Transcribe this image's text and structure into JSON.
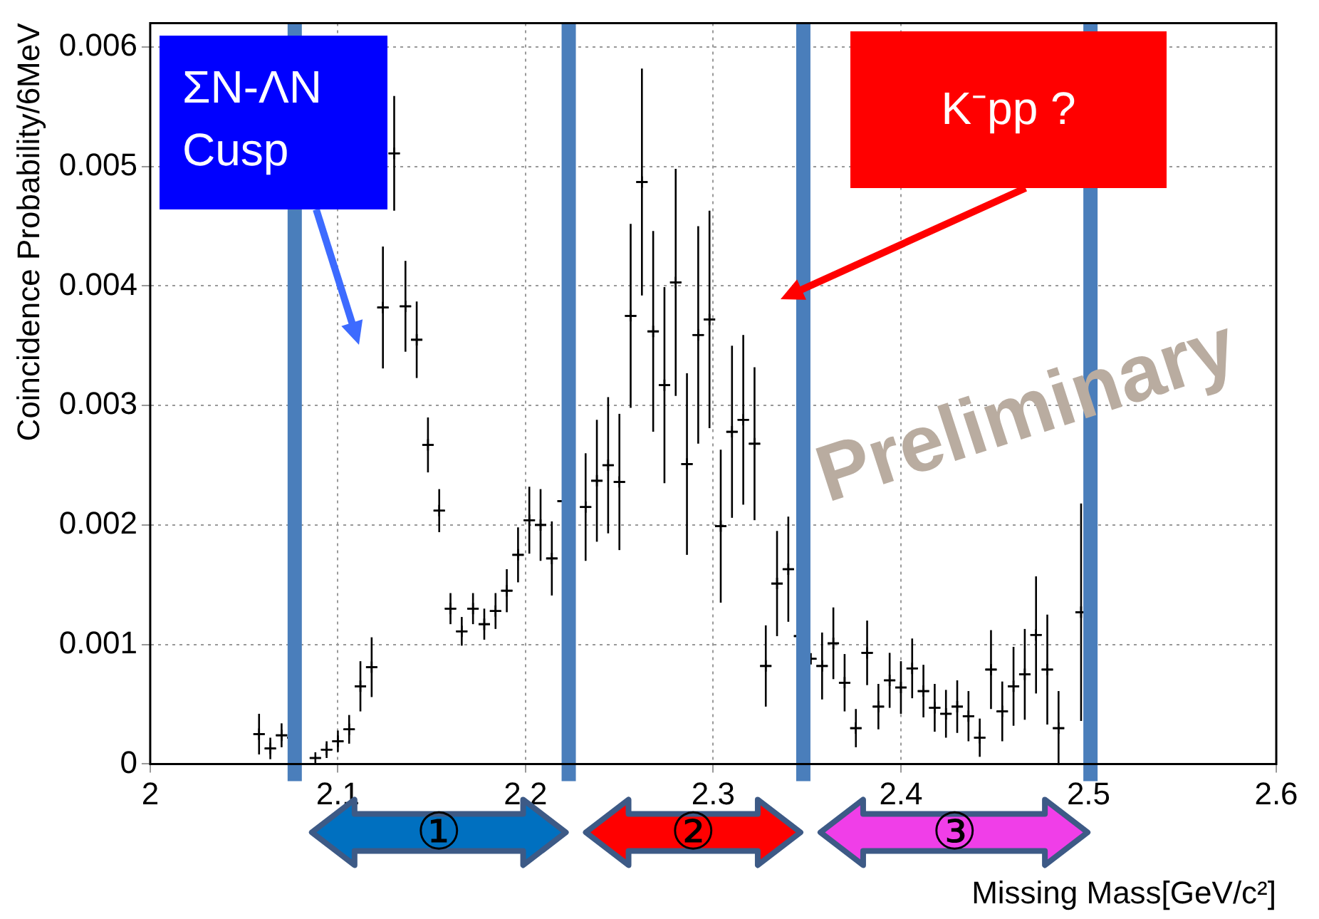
{
  "chart_data": {
    "type": "scatter",
    "ylabel": "Coincidence Probability/6MeV",
    "xlabel": "Missing Mass[GeV/c²]",
    "xlim": [
      2,
      2.6
    ],
    "xticks": [
      2,
      2.1,
      2.2,
      2.3,
      2.4,
      2.5,
      2.6
    ],
    "ylim": [
      0,
      0.0062
    ],
    "yticks": [
      0,
      0.001,
      0.002,
      0.003,
      0.004,
      0.005,
      0.006
    ],
    "grid": true,
    "marker": "cross",
    "x": [
      2.058,
      2.064,
      2.07,
      2.076,
      2.088,
      2.094,
      2.1,
      2.106,
      2.112,
      2.118,
      2.124,
      2.13,
      2.136,
      2.142,
      2.148,
      2.154,
      2.16,
      2.166,
      2.172,
      2.178,
      2.184,
      2.19,
      2.196,
      2.202,
      2.208,
      2.214,
      2.22,
      2.232,
      2.238,
      2.244,
      2.25,
      2.256,
      2.262,
      2.268,
      2.274,
      2.28,
      2.286,
      2.292,
      2.298,
      2.304,
      2.31,
      2.316,
      2.322,
      2.328,
      2.334,
      2.34,
      2.346,
      2.352,
      2.358,
      2.364,
      2.37,
      2.376,
      2.382,
      2.388,
      2.394,
      2.4,
      2.406,
      2.412,
      2.418,
      2.424,
      2.43,
      2.436,
      2.442,
      2.448,
      2.454,
      2.46,
      2.466,
      2.472,
      2.478,
      2.484,
      2.496
    ],
    "series": [
      {
        "color": "#000000",
        "values": [
          0.00025,
          0.00013,
          0.00024,
          0.00022,
          5e-05,
          0.00012,
          0.00019,
          0.00029,
          0.00065,
          0.00081,
          0.00382,
          0.00511,
          0.00383,
          0.00355,
          0.00267,
          0.00212,
          0.0013,
          0.00111,
          0.0013,
          0.00117,
          0.00128,
          0.00145,
          0.00175,
          0.00204,
          0.002,
          0.00172,
          0.0022,
          0.00215,
          0.00237,
          0.0025,
          0.00236,
          0.00375,
          0.00487,
          0.00362,
          0.00317,
          0.00403,
          0.00251,
          0.00359,
          0.00372,
          0.00199,
          0.00278,
          0.00288,
          0.00268,
          0.00082,
          0.00151,
          0.00163,
          0.00107,
          0.00088,
          0.00082,
          0.00101,
          0.00068,
          0.0003,
          0.00093,
          0.00048,
          0.0007,
          0.00064,
          0.0008,
          0.00061,
          0.00047,
          0.00042,
          0.00048,
          0.0004,
          0.00022,
          0.00079,
          0.00044,
          0.00065,
          0.00075,
          0.00108,
          0.00079,
          0.0003,
          0.00127
        ],
        "errors": [
          0.00017,
          9e-05,
          0.0001,
          null,
          null,
          7e-05,
          9e-05,
          0.00012,
          0.00021,
          0.00025,
          0.00051,
          0.00048,
          0.00038,
          0.00032,
          0.00023,
          0.00018,
          0.00013,
          0.00012,
          0.00013,
          0.00013,
          0.00015,
          0.00018,
          0.00023,
          0.00028,
          0.0003,
          0.00031,
          null,
          0.00045,
          0.00051,
          0.00057,
          0.00057,
          0.00077,
          0.00095,
          0.00084,
          0.00082,
          0.00095,
          0.00076,
          0.00091,
          0.00091,
          0.00064,
          0.00072,
          0.00071,
          0.00064,
          0.00034,
          0.00044,
          0.00044,
          null,
          null,
          0.00028,
          0.0003,
          0.00024,
          0.00016,
          0.00027,
          0.00019,
          0.00023,
          0.00022,
          0.00025,
          0.00022,
          0.0002,
          0.0002,
          0.00022,
          0.00021,
          0.00016,
          0.00033,
          0.00025,
          0.00033,
          0.00038,
          0.00049,
          0.00046,
          0.00031,
          0.00091
        ],
        "xerrors": [
          0.003,
          0.003,
          0.003,
          0.003,
          0.003,
          0.003,
          0.003,
          0.003,
          0.003,
          0.003,
          0.003,
          0.003,
          0.003,
          0.003,
          0.003,
          0.003,
          0.003,
          0.003,
          0.003,
          0.003,
          0.003,
          0.003,
          0.003,
          0.003,
          0.003,
          0.003,
          0.003,
          0.003,
          0.003,
          0.003,
          0.003,
          0.003,
          0.003,
          0.003,
          0.003,
          0.003,
          0.003,
          0.003,
          0.003,
          0.003,
          0.003,
          0.003,
          0.003,
          0.003,
          0.003,
          0.003,
          0.003,
          0.003,
          0.003,
          0.003,
          0.003,
          0.003,
          0.003,
          0.003,
          0.003,
          0.003,
          0.003,
          0.003,
          0.003,
          0.003,
          0.003,
          0.003,
          0.003,
          0.003,
          0.003,
          0.003,
          0.003,
          0.003,
          0.003,
          0.003,
          0.003
        ]
      }
    ],
    "ref_lines": [
      {
        "axis": "x",
        "value": 2.077,
        "color": "#4a7ebb"
      },
      {
        "axis": "x",
        "value": 2.223,
        "color": "#4a7ebb"
      },
      {
        "axis": "x",
        "value": 2.348,
        "color": "#4a7ebb"
      },
      {
        "axis": "x",
        "value": 2.501,
        "color": "#4a7ebb"
      }
    ],
    "annotations": [
      "ΣN-ΛN Cusp",
      "K⁻pp ?",
      "Preliminary",
      "①",
      "②",
      "③"
    ]
  }
}
